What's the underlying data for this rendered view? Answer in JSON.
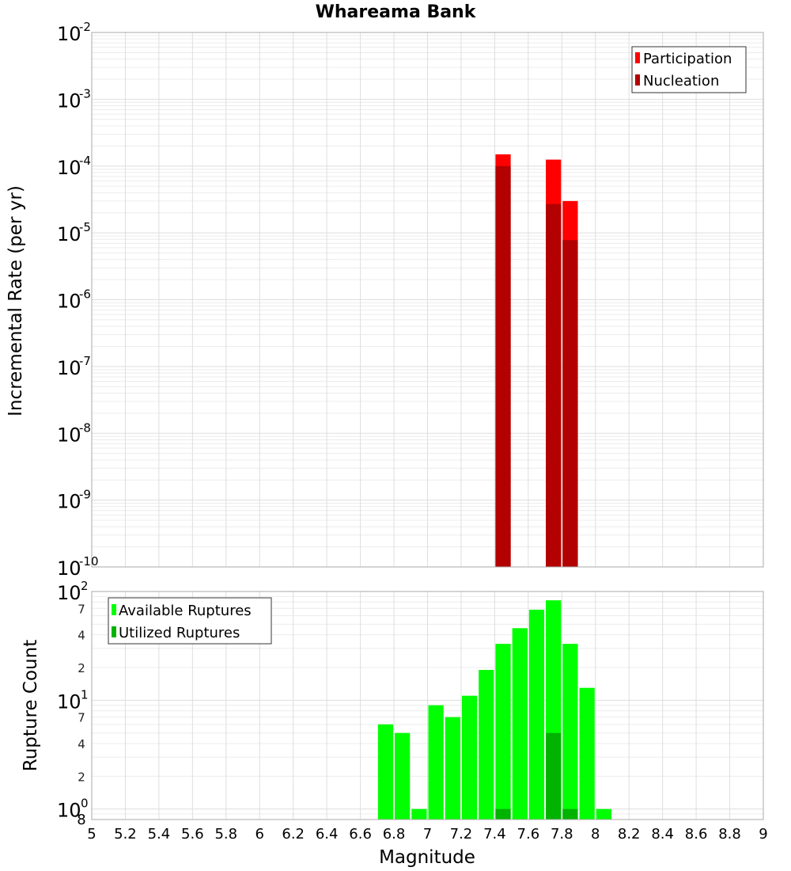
{
  "chart_data": [
    {
      "type": "bar",
      "title": "Whareama Bank",
      "xlabel": "",
      "ylabel": "Incremental Rate (per yr)",
      "yscale": "log",
      "ylim": [
        1e-10,
        0.01
      ],
      "xlim": [
        5,
        9
      ],
      "bin_width": 0.1,
      "series": [
        {
          "name": "Participation",
          "color": "#ff0000",
          "x": [
            7.45,
            7.75,
            7.85
          ],
          "values": [
            0.00015,
            0.000125,
            3e-05
          ]
        },
        {
          "name": "Nucleation",
          "color": "#b30000",
          "x": [
            7.45,
            7.75,
            7.85
          ],
          "values": [
            0.0001,
            2.7e-05,
            7.8e-06
          ]
        }
      ],
      "legend": "top-right",
      "grid": true,
      "y_tick_labels": [
        {
          "base": "10",
          "exp": "-2"
        },
        {
          "base": "10",
          "exp": "-3"
        },
        {
          "base": "10",
          "exp": "-4"
        },
        {
          "base": "10",
          "exp": "-5"
        },
        {
          "base": "10",
          "exp": "-6"
        },
        {
          "base": "10",
          "exp": "-7"
        },
        {
          "base": "10",
          "exp": "-8"
        },
        {
          "base": "10",
          "exp": "-9"
        },
        {
          "base": "10",
          "exp": "-10"
        }
      ]
    },
    {
      "type": "bar",
      "title": "",
      "xlabel": "Magnitude",
      "ylabel": "Rupture Count",
      "yscale": "log",
      "ylim": [
        0.8,
        100
      ],
      "xlim": [
        5,
        9
      ],
      "bin_width": 0.1,
      "series": [
        {
          "name": "Available Ruptures",
          "color": "#00ff00",
          "x": [
            6.75,
            6.85,
            6.95,
            7.05,
            7.15,
            7.25,
            7.35,
            7.45,
            7.55,
            7.65,
            7.75,
            7.85,
            7.95,
            8.05
          ],
          "values": [
            6,
            5,
            1,
            9,
            7,
            11,
            19,
            33,
            46,
            68,
            83,
            33,
            13,
            1
          ]
        },
        {
          "name": "Utilized Ruptures",
          "color": "#00b300",
          "x": [
            7.45,
            7.75,
            7.85
          ],
          "values": [
            1,
            5,
            1
          ]
        }
      ],
      "legend": "top-left",
      "grid": true,
      "y_tick_labels": [
        {
          "base": "10",
          "exp": "2"
        },
        {
          "base": "10",
          "exp": "1"
        },
        {
          "base": "10",
          "exp": "0"
        }
      ],
      "y_minor_tick_labels": [
        {
          "value": 70,
          "label": "7"
        },
        {
          "value": 40,
          "label": "4"
        },
        {
          "value": 20,
          "label": "2"
        },
        {
          "value": 7,
          "label": "7"
        },
        {
          "value": 4,
          "label": "4"
        },
        {
          "value": 2,
          "label": "2"
        },
        {
          "value": 0.8,
          "label": "8"
        }
      ],
      "x_tick_labels": [
        "5",
        "5.2",
        "5.4",
        "5.6",
        "5.8",
        "6",
        "6.2",
        "6.4",
        "6.6",
        "6.8",
        "7",
        "7.2",
        "7.4",
        "7.6",
        "7.8",
        "8",
        "8.2",
        "8.4",
        "8.6",
        "8.8",
        "9"
      ]
    }
  ]
}
